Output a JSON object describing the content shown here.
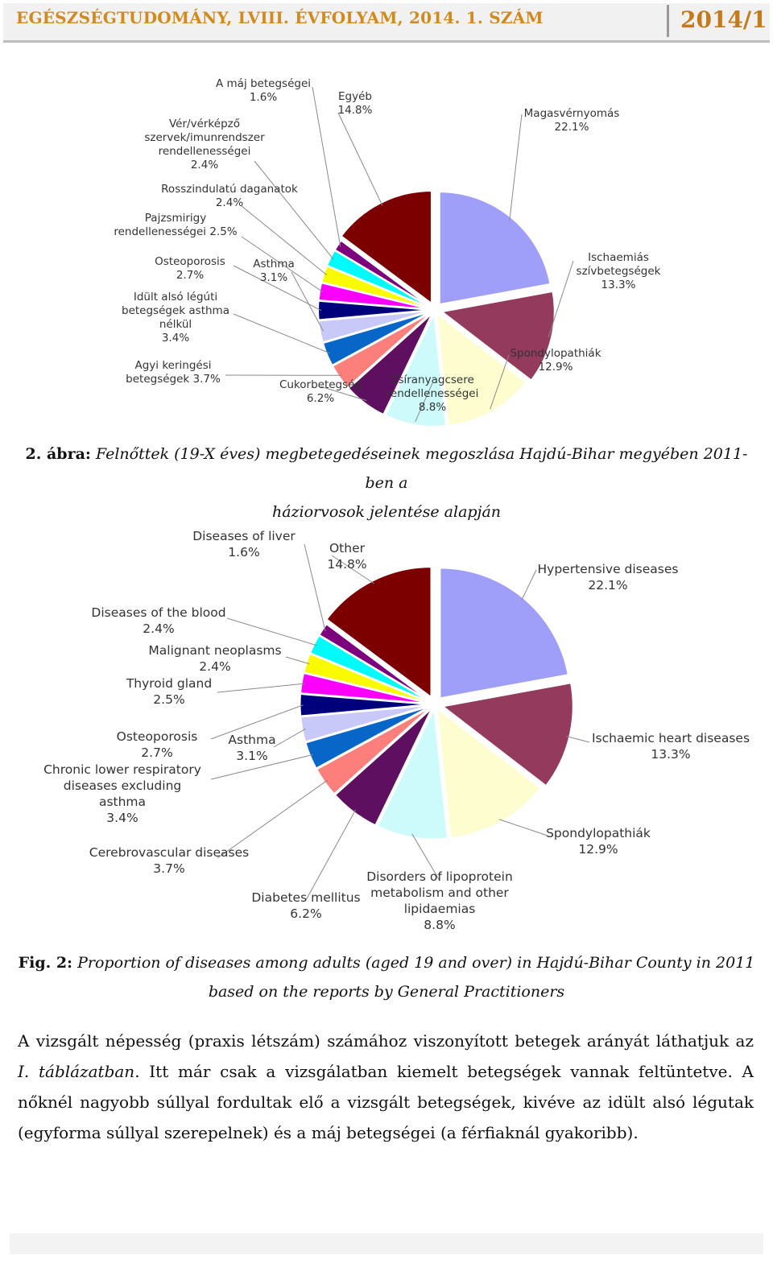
{
  "header": {
    "journal": "EGÉSZSÉGTUDOMÁNY, LVIII. ÉVFOLYAM, 2014. 1. SZÁM",
    "issue": "2014/1"
  },
  "chart_data": [
    {
      "type": "pie",
      "language": "hu",
      "title": "",
      "slices": [
        {
          "label": "Magasvérnyomás",
          "value": 22.1,
          "display": "22.1%",
          "color": "#9f9ffa"
        },
        {
          "label": "Ischaemiás szívbetegségek",
          "value": 13.3,
          "display": "13.3%",
          "color": "#943a5d"
        },
        {
          "label": "Spondylopathiák",
          "value": 12.9,
          "display": "12.9%",
          "color": "#fdfdcf"
        },
        {
          "label": "Zsíranyagcsere rendellenességei",
          "value": 8.8,
          "display": "8.8%",
          "color": "#cdfbfb"
        },
        {
          "label": "Cukorbetegség",
          "value": 6.2,
          "display": "6.2%",
          "color": "#5f0f5f"
        },
        {
          "label": "Agyi keringési betegségek",
          "value": 3.7,
          "display": "3.7%",
          "color": "#fc7f7c"
        },
        {
          "label": "Idült alsó légúti betegségek asthma nélkül",
          "value": 3.4,
          "display": "3.4%",
          "color": "#0966c9"
        },
        {
          "label": "Asthma",
          "value": 3.1,
          "display": "3.1%",
          "color": "#c8c8f9"
        },
        {
          "label": "Osteoporosis",
          "value": 2.7,
          "display": "2.7%",
          "color": "#00007d"
        },
        {
          "label": "Pajzsmirigy rendellenességei",
          "value": 2.5,
          "display": "2.5%",
          "color": "#fb00fb"
        },
        {
          "label": "Rosszindulatú daganatok",
          "value": 2.4,
          "display": "2.4%",
          "color": "#fbfb00"
        },
        {
          "label": "Vér/vérképző szervek/imunrendszer rendellenességei",
          "value": 2.4,
          "display": "2.4%",
          "color": "#00fbfb"
        },
        {
          "label": "A máj betegségei",
          "value": 1.6,
          "display": "1.6%",
          "color": "#7d007d"
        },
        {
          "label": "Egyéb",
          "value": 14.8,
          "display": "14.8%",
          "color": "#7d0000"
        }
      ]
    },
    {
      "type": "pie",
      "language": "en",
      "title": "",
      "slices": [
        {
          "label": "Hypertensive diseases",
          "value": 22.1,
          "display": "22.1%",
          "color": "#9f9ffa"
        },
        {
          "label": "Ischaemic heart diseases",
          "value": 13.3,
          "display": "13.3%",
          "color": "#943a5d"
        },
        {
          "label": "Spondylopathiák",
          "value": 12.9,
          "display": "12.9%",
          "color": "#fdfdcf"
        },
        {
          "label": "Disorders of lipoprotein metabolism and other lipidaemias",
          "value": 8.8,
          "display": "8.8%",
          "color": "#cdfbfb"
        },
        {
          "label": "Diabetes mellitus",
          "value": 6.2,
          "display": "6.2%",
          "color": "#5f0f5f"
        },
        {
          "label": "Cerebrovascular diseases",
          "value": 3.7,
          "display": "3.7%",
          "color": "#fc7f7c"
        },
        {
          "label": "Chronic lower respiratory diseases excluding asthma",
          "value": 3.4,
          "display": "3.4%",
          "color": "#0966c9"
        },
        {
          "label": "Asthma",
          "value": 3.1,
          "display": "3.1%",
          "color": "#c8c8f9"
        },
        {
          "label": "Osteoporosis",
          "value": 2.7,
          "display": "2.7%",
          "color": "#00007d"
        },
        {
          "label": "Thyroid gland",
          "value": 2.5,
          "display": "2.5%",
          "color": "#fb00fb"
        },
        {
          "label": "Malignant neoplasms",
          "value": 2.4,
          "display": "2.4%",
          "color": "#fbfb00"
        },
        {
          "label": "Diseases of the blood",
          "value": 2.4,
          "display": "2.4%",
          "color": "#00fbfb"
        },
        {
          "label": "Diseases of liver",
          "value": 1.6,
          "display": "1.6%",
          "color": "#7d007d"
        },
        {
          "label": "Other",
          "value": 14.8,
          "display": "14.8%",
          "color": "#7d0000"
        }
      ]
    }
  ],
  "labels_hu": [
    {
      "lines": [
        "Magasvérnyomás",
        "22.1%"
      ]
    },
    {
      "lines": [
        "Ischaemiás",
        "szívbetegségek",
        "13.3%"
      ]
    },
    {
      "lines": [
        "Spondylopathiák",
        "12.9%"
      ]
    },
    {
      "lines": [
        "Zsíranyagcsere",
        "rendellenességei",
        "8.8%"
      ]
    },
    {
      "lines": [
        "Cukorbetegség",
        "6.2%"
      ]
    },
    {
      "lines": [
        "Agyi keringési",
        "betegségek 3.7%"
      ]
    },
    {
      "lines": [
        "Idült alsó légúti",
        "betegségek asthma",
        "nélkül",
        "3.4%"
      ]
    },
    {
      "lines": [
        "Asthma",
        "3.1%"
      ]
    },
    {
      "lines": [
        "Osteoporosis",
        "2.7%"
      ]
    },
    {
      "lines": [
        "Pajzsmirigy",
        "rendellenességei 2.5%"
      ]
    },
    {
      "lines": [
        "Rosszindulatú daganatok",
        "2.4%"
      ]
    },
    {
      "lines": [
        "Vér/vérképző",
        "szervek/imunrendszer",
        "rendellenességei",
        "2.4%"
      ]
    },
    {
      "lines": [
        "A máj betegségei",
        "1.6%"
      ]
    },
    {
      "lines": [
        "Egyéb",
        "14.8%"
      ]
    }
  ],
  "labels_en": [
    {
      "lines": [
        "Hypertensive diseases",
        "22.1%"
      ]
    },
    {
      "lines": [
        "Ischaemic heart diseases",
        "13.3%"
      ]
    },
    {
      "lines": [
        "Spondylopathiák",
        "12.9%"
      ]
    },
    {
      "lines": [
        "Disorders of lipoprotein",
        "metabolism and other",
        "lipidaemias",
        "8.8%"
      ]
    },
    {
      "lines": [
        "Diabetes mellitus",
        "6.2%"
      ]
    },
    {
      "lines": [
        "Cerebrovascular diseases",
        "3.7%"
      ]
    },
    {
      "lines": [
        "Chronic lower respiratory",
        "diseases excluding",
        "asthma",
        "3.4%"
      ]
    },
    {
      "lines": [
        "Asthma",
        "3.1%"
      ]
    },
    {
      "lines": [
        "Osteoporosis",
        "2.7%"
      ]
    },
    {
      "lines": [
        "Thyroid gland",
        "2.5%"
      ]
    },
    {
      "lines": [
        "Malignant neoplasms",
        "2.4%"
      ]
    },
    {
      "lines": [
        "Diseases of the blood",
        "2.4%"
      ]
    },
    {
      "lines": [
        "Diseases of liver",
        "1.6%"
      ]
    },
    {
      "lines": [
        "Other",
        "14.8%"
      ]
    }
  ],
  "caption_hu": {
    "label": "2. ábra:",
    "text_line1": "Felnőttek (19-X éves) megbetegedéseinek megoszlása Hajdú-Bihar megyében 2011-ben a",
    "text_line2": "háziorvosok jelentése alapján"
  },
  "caption_en": {
    "label": "Fig. 2:",
    "text_line1": "Proportion of diseases among adults (aged 19 and over) in Hajdú-Bihar County in 2011",
    "text_line2": "based on the reports by General Practitioners"
  },
  "body": {
    "p1": "A vizsgált népesség (praxis létszám) számához viszonyított betegek arányát láthatjuk az ",
    "p1_ref": "I. táblázatban",
    "p1_rest": ". Itt már csak a vizsgálatban kiemelt betegségek vannak feltüntetve. A nőknél nagyobb súllyal fordultak elő a vizsgált betegségek, kivéve az idült alsó légutak (egyforma súllyal szerepelnek) és a máj betegségei (a férfiaknál gyakoribb)."
  }
}
